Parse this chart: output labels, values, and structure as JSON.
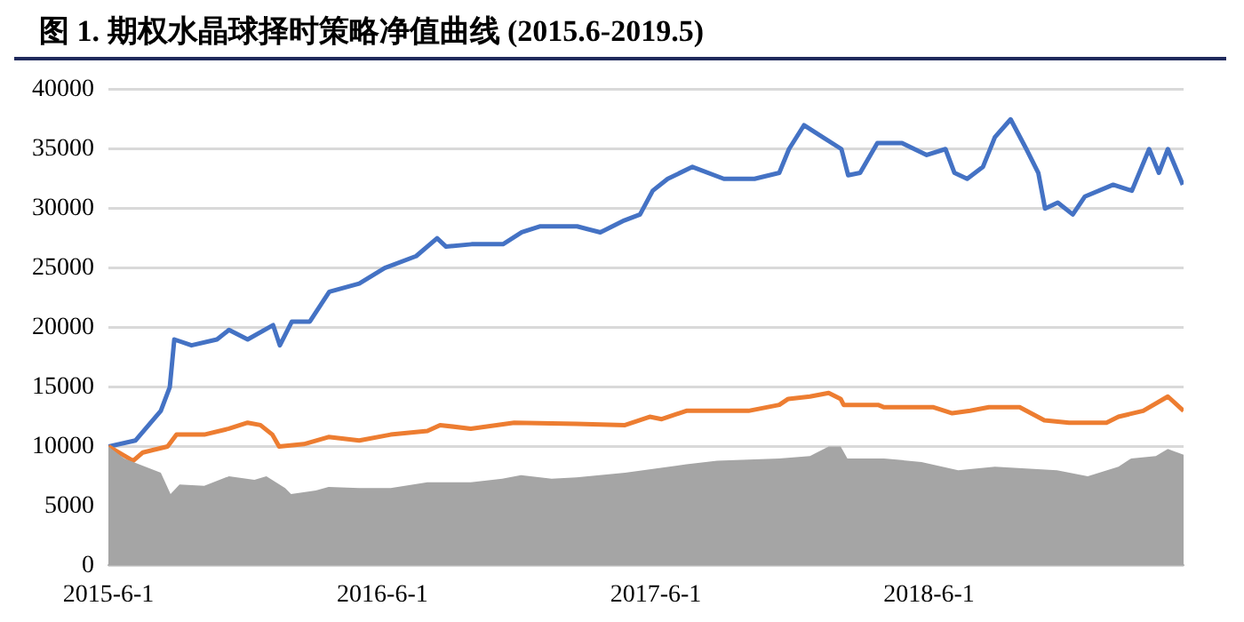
{
  "chart_data": {
    "type": "line",
    "title": "图 1. 期权水晶球择时策略净值曲线 (2015.6-2019.5)",
    "xlim": [
      "2015-06-01",
      "2019-05-07"
    ],
    "xticks": [
      {
        "value": "2015-06-01",
        "label": "2015-6-1"
      },
      {
        "value": "2016-06-01",
        "label": "2016-6-1"
      },
      {
        "value": "2017-06-01",
        "label": "2017-6-1"
      },
      {
        "value": "2018-06-01",
        "label": "2018-6-1"
      }
    ],
    "ylim": [
      0,
      40000
    ],
    "yticks": [
      0,
      5000,
      10000,
      15000,
      20000,
      25000,
      30000,
      35000,
      40000
    ],
    "grid": "y",
    "marker": "none",
    "line_style": "solid",
    "series": [
      {
        "type": "area",
        "color": "#a5a5a5",
        "x": [
          "2015-06-01",
          "2015-06-22",
          "2015-08-10",
          "2015-08-23",
          "2015-09-04",
          "2015-10-07",
          "2015-11-09",
          "2015-12-13",
          "2015-12-29",
          "2016-01-23",
          "2016-01-31",
          "2016-03-04",
          "2016-03-21",
          "2016-05-01",
          "2016-06-12",
          "2016-07-31",
          "2016-09-27",
          "2016-11-08",
          "2016-12-03",
          "2017-01-13",
          "2017-02-15",
          "2017-04-21",
          "2017-07-12",
          "2017-08-22",
          "2017-11-13",
          "2017-12-24",
          "2018-01-18",
          "2018-02-03",
          "2018-02-12",
          "2018-04-02",
          "2018-05-22",
          "2018-07-10",
          "2018-08-28",
          "2018-11-19",
          "2018-12-30",
          "2019-02-09",
          "2019-02-26",
          "2019-03-31",
          "2019-04-16",
          "2019-05-07"
        ],
        "values": [
          10000,
          9000,
          7800,
          6000,
          6800,
          6700,
          7500,
          7200,
          7500,
          6500,
          6000,
          6300,
          6600,
          6500,
          6500,
          7000,
          7000,
          7300,
          7600,
          7300,
          7400,
          7800,
          8500,
          8800,
          9000,
          9200,
          10000,
          10000,
          9000,
          9000,
          8700,
          8000,
          8300,
          8000,
          7500,
          8300,
          9000,
          9200,
          9800,
          9300
        ]
      },
      {
        "type": "line",
        "color": "#ed7d31",
        "x": [
          "2015-06-01",
          "2015-07-04",
          "2015-07-17",
          "2015-08-19",
          "2015-08-31",
          "2015-10-07",
          "2015-11-09",
          "2015-12-04",
          "2015-12-21",
          "2016-01-06",
          "2016-01-15",
          "2016-02-17",
          "2016-03-21",
          "2016-05-01",
          "2016-06-12",
          "2016-07-31",
          "2016-08-17",
          "2016-09-27",
          "2016-11-24",
          "2017-02-15",
          "2017-04-21",
          "2017-05-24",
          "2017-06-09",
          "2017-07-12",
          "2017-08-22",
          "2017-10-03",
          "2017-11-13",
          "2017-11-25",
          "2017-12-24",
          "2018-01-18",
          "2018-02-03",
          "2018-02-07",
          "2018-03-25",
          "2018-04-02",
          "2018-06-07",
          "2018-07-02",
          "2018-07-26",
          "2018-08-20",
          "2018-09-30",
          "2018-11-02",
          "2018-12-05",
          "2019-01-24",
          "2019-02-09",
          "2019-03-14",
          "2019-04-16",
          "2019-05-07"
        ],
        "values": [
          10000,
          8800,
          9500,
          10000,
          11000,
          11000,
          11500,
          12000,
          11800,
          11000,
          10000,
          10200,
          10800,
          10500,
          11000,
          11300,
          11800,
          11500,
          12000,
          11900,
          11800,
          12500,
          12300,
          13000,
          13000,
          13000,
          13500,
          14000,
          14200,
          14500,
          14000,
          13500,
          13500,
          13300,
          13300,
          12800,
          13000,
          13300,
          13300,
          12200,
          12000,
          12000,
          12500,
          13000,
          14200,
          13000
        ]
      },
      {
        "type": "line",
        "color": "#4472c4",
        "x": [
          "2015-06-01",
          "2015-07-07",
          "2015-08-10",
          "2015-08-22",
          "2015-08-28",
          "2015-09-20",
          "2015-10-24",
          "2015-11-09",
          "2015-12-04",
          "2016-01-07",
          "2016-01-16",
          "2016-02-01",
          "2016-02-25",
          "2016-03-22",
          "2016-05-01",
          "2016-06-04",
          "2016-07-16",
          "2016-08-13",
          "2016-08-25",
          "2016-09-28",
          "2016-11-09",
          "2016-12-04",
          "2016-12-28",
          "2017-02-16",
          "2017-03-19",
          "2017-04-20",
          "2017-05-11",
          "2017-05-28",
          "2017-06-17",
          "2017-07-20",
          "2017-08-31",
          "2017-10-11",
          "2017-11-13",
          "2017-11-26",
          "2017-12-16",
          "2018-01-10",
          "2018-02-04",
          "2018-02-13",
          "2018-03-01",
          "2018-03-24",
          "2018-04-26",
          "2018-05-29",
          "2018-06-23",
          "2018-07-05",
          "2018-07-22",
          "2018-08-12",
          "2018-08-28",
          "2018-09-18",
          "2018-10-09",
          "2018-10-25",
          "2018-11-03",
          "2018-11-20",
          "2018-12-10",
          "2018-12-26",
          "2019-02-02",
          "2019-02-27",
          "2019-03-22",
          "2019-04-04",
          "2019-04-16",
          "2019-05-06"
        ],
        "values": [
          10000,
          10500,
          13000,
          15000,
          19000,
          18500,
          19000,
          19800,
          19000,
          20200,
          18500,
          20500,
          20500,
          23000,
          23700,
          25000,
          26000,
          27500,
          26800,
          27000,
          27000,
          28000,
          28500,
          28500,
          28000,
          29000,
          29500,
          31500,
          32500,
          33500,
          32500,
          32500,
          33000,
          35000,
          37000,
          36000,
          35000,
          32800,
          33000,
          35500,
          35500,
          34500,
          35000,
          33000,
          32500,
          33500,
          36000,
          37500,
          35000,
          33000,
          30000,
          30500,
          29500,
          31000,
          32000,
          31500,
          35000,
          33000,
          35000,
          32000
        ]
      }
    ]
  }
}
